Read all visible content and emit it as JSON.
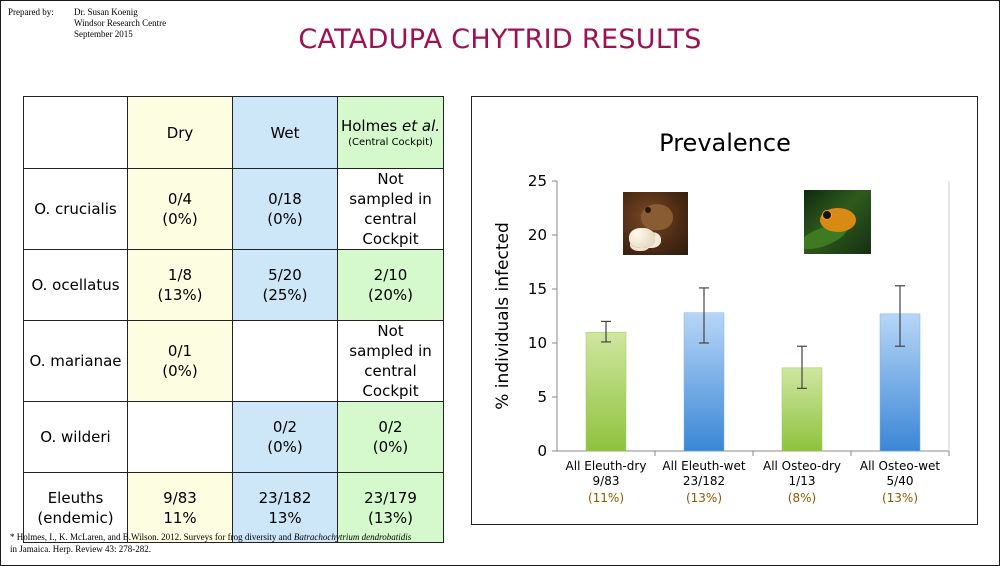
{
  "header": {
    "prepared_label": "Prepared by:",
    "prepared_lines": [
      "Dr. Susan Koenig",
      "Windsor Research Centre",
      "September 2015"
    ]
  },
  "title": "CATADUPA CHYTRID RESULTS",
  "table": {
    "headers": {
      "dry": "Dry",
      "wet": "Wet",
      "holmes_main": "Holmes ",
      "holmes_em": "et al.",
      "holmes_sub": "(Central Cockpit)"
    },
    "rows": [
      {
        "species": "O. crucialis",
        "dry": "0/4\n(0%)",
        "wet": "0/18\n(0%)",
        "holmes": "Not\nsampled in\ncentral Cockpit"
      },
      {
        "species": "O. ocellatus",
        "dry": "1/8\n(13%)",
        "wet": "5/20\n(25%)",
        "holmes": "2/10\n(20%)"
      },
      {
        "species": "O. marianae",
        "dry": "0/1\n(0%)",
        "wet": "",
        "holmes": "Not\nsampled in\ncentral Cockpit"
      },
      {
        "species": "O. wilderi",
        "dry": "",
        "wet": "0/2\n(0%)",
        "holmes": "0/2\n(0%)"
      },
      {
        "species": "Eleuths\n(endemic)",
        "dry": "9/83\n11%",
        "wet": "23/182\n13%",
        "holmes": "23/179\n(13%)"
      }
    ]
  },
  "footnote": {
    "line1_pre": "* Holmes, I., K. McLaren, and B.Wilson.  2012.  Surveys for frog diversity and ",
    "line1_em": "Batrachochytrium dendrobatidis",
    "line2": "in Jamaica.  Herp. Review 43: 278-282."
  },
  "chart_data": {
    "type": "bar",
    "title": "Prevalence",
    "ylabel": "% individuals infected",
    "ylim": [
      0,
      25
    ],
    "yticks": [
      0,
      5,
      10,
      15,
      20,
      25
    ],
    "grid": false,
    "categories": [
      "All Eleuth-dry",
      "All Eleuth-wet",
      "All Osteo-dry",
      "All Osteo-wet"
    ],
    "counts": [
      "9/83",
      "23/182",
      "1/13",
      "5/40"
    ],
    "percent_labels": [
      "(11%)",
      "(13%)",
      "(8%)",
      "(13%)"
    ],
    "values": [
      11,
      12.8,
      7.7,
      12.7
    ],
    "error_low": [
      10.1,
      10.0,
      5.8,
      9.7
    ],
    "error_high": [
      12.0,
      15.1,
      9.7,
      15.3
    ],
    "bar_colors": [
      "green",
      "blue",
      "green",
      "blue"
    ]
  },
  "colors": {
    "title": "#a01050",
    "dry_cell": "#fdfde2",
    "wet_cell": "#cde6f8",
    "holmes_cell": "#d6f8cd",
    "percent_label": "#8b5a00",
    "green_bar_top": "#cfe6a0",
    "green_bar_bottom": "#8fc23e",
    "blue_bar_top": "#b8d6f6",
    "blue_bar_bottom": "#3a86d6"
  },
  "images": {
    "photo1": "frog-with-eggs-photo",
    "photo2": "orange-tree-frog-photo"
  }
}
